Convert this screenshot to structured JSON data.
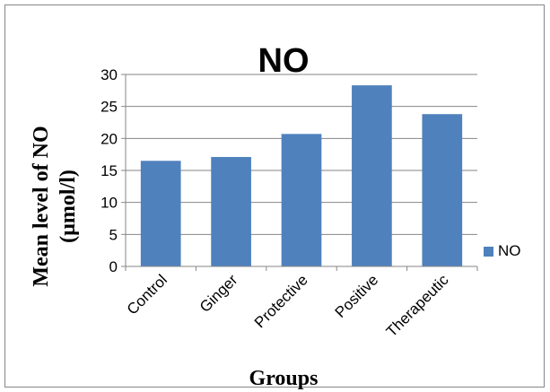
{
  "chart_data": {
    "type": "bar",
    "title": "NO",
    "xlabel": "Groups",
    "ylabel_line1": "Mean level of NO",
    "ylabel_line2": "(µmol/l)",
    "categories": [
      "Control",
      "Ginger",
      "Protective",
      "Positive",
      "Therapeutic"
    ],
    "series": [
      {
        "name": "NO",
        "values": [
          16.5,
          17.1,
          20.7,
          28.3,
          23.8
        ]
      }
    ],
    "ylim": [
      0,
      30
    ],
    "yticks": [
      "0",
      "5",
      "10",
      "15",
      "20",
      "25",
      "30"
    ],
    "grid": true,
    "legend_position": "right",
    "colors": {
      "bar": "#4F81BD",
      "grid": "#868686",
      "axis": "#868686"
    }
  }
}
